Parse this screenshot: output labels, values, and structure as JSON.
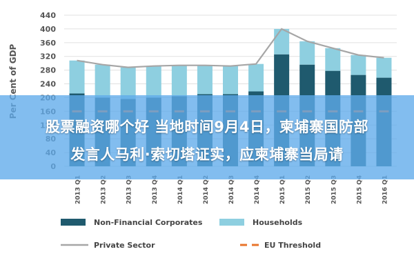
{
  "chart_data": {
    "type": "bar",
    "ylabel": "Per Cent of GDP",
    "ylim": [
      0,
      440
    ],
    "yticks": [
      0,
      40,
      80,
      120,
      160,
      200,
      240,
      280,
      320,
      360,
      400,
      440
    ],
    "categories": [
      "2013 Q1",
      "2013 Q2",
      "2013 Q3",
      "2013 Q4",
      "2014 Q1",
      "2014 Q2",
      "2014 Q3",
      "2014 Q4",
      "2015 Q1",
      "2015 Q2",
      "2015 Q3",
      "2015 Q4",
      "2016 Q1"
    ],
    "series": [
      {
        "name": "Non-Financial Corporates",
        "kind": "stacked-bar",
        "color": "#1f5a6e",
        "values": [
          212,
          200,
          196,
          200,
          204,
          210,
          210,
          218,
          326,
          296,
          278,
          266,
          258
        ]
      },
      {
        "name": "Households",
        "kind": "stacked-bar",
        "color": "#8ecfe0",
        "values": [
          96,
          96,
          92,
          92,
          90,
          84,
          82,
          80,
          74,
          68,
          66,
          58,
          58
        ]
      },
      {
        "name": "Private Sector",
        "kind": "line",
        "color": "#a6a6a6",
        "values": [
          308,
          296,
          288,
          292,
          294,
          294,
          292,
          298,
          400,
          364,
          344,
          324,
          316
        ]
      },
      {
        "name": "EU Threshold",
        "kind": "dashed-line",
        "color": "#e8742a",
        "values": [
          160,
          160,
          160,
          160,
          160,
          160,
          160,
          160,
          160,
          160,
          160,
          160,
          160
        ]
      }
    ],
    "grid": true,
    "legend_position": "bottom"
  },
  "overlay": {
    "line1": "股票融资哪个好 当地时间9月4日，柬埔寨国防部",
    "line2": "发言人马利·索切塔证实，应柬埔寨当局请"
  }
}
